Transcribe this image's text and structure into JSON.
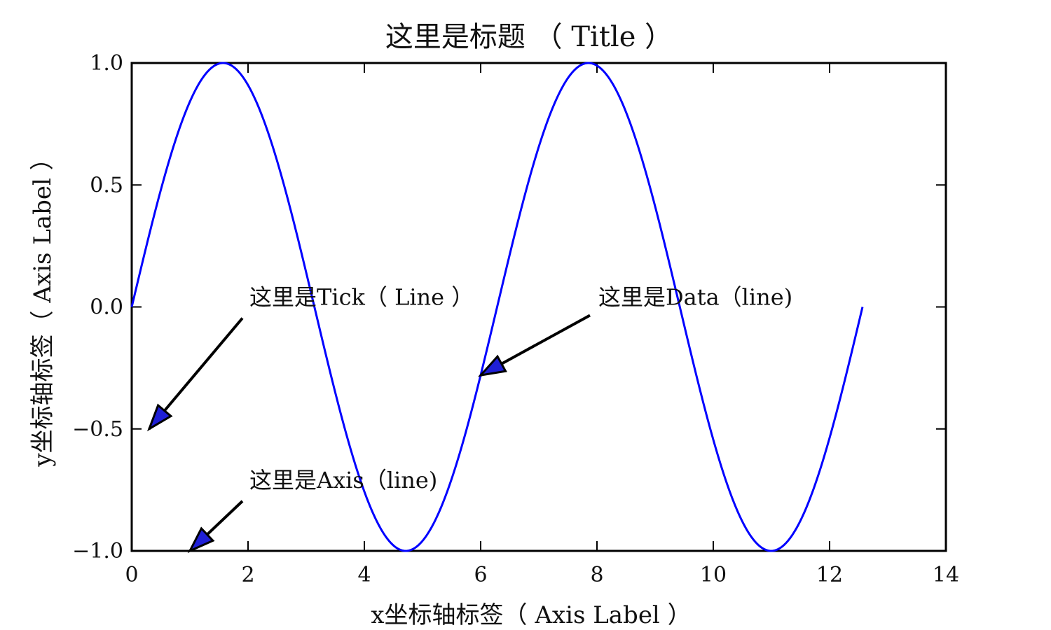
{
  "chart_data": {
    "type": "line",
    "title": "这里是标题 （ Title ）",
    "xlabel": "x坐标轴标签（ Axis Label ）",
    "ylabel": "y坐标轴标签（ Axis Label ）",
    "xlim": [
      0,
      14
    ],
    "ylim": [
      -1.0,
      1.0
    ],
    "grid": false,
    "x_ticks": [
      0,
      2,
      4,
      6,
      8,
      10,
      12,
      14
    ],
    "x_tick_labels": [
      "0",
      "2",
      "4",
      "6",
      "8",
      "10",
      "12",
      "14"
    ],
    "y_ticks": [
      -1.0,
      -0.5,
      0.0,
      0.5,
      1.0
    ],
    "y_tick_labels": [
      "−1.0",
      "−0.5",
      "0.0",
      "0.5",
      "1.0"
    ],
    "series": [
      {
        "function": "sin(x)",
        "x_range": [
          0,
          12.5664
        ],
        "color": "#0000ff"
      }
    ],
    "annotations": [
      {
        "text": "这里是Tick（ Line ）",
        "text_x": 2.0,
        "text_y": 0.0,
        "point_x": 0.3,
        "point_y": -0.5
      },
      {
        "text": "这里是Data（line)",
        "text_x": 8.0,
        "text_y": 0.0,
        "point_x": 6.0,
        "point_y": -0.28
      },
      {
        "text": "这里是Axis（line)",
        "text_x": 2.0,
        "text_y": -0.75,
        "point_x": 1.0,
        "point_y": -1.0
      }
    ],
    "colors": {
      "line": "#0000ff",
      "arrow_fill": "#1f1fd6",
      "frame": "#000000"
    }
  }
}
